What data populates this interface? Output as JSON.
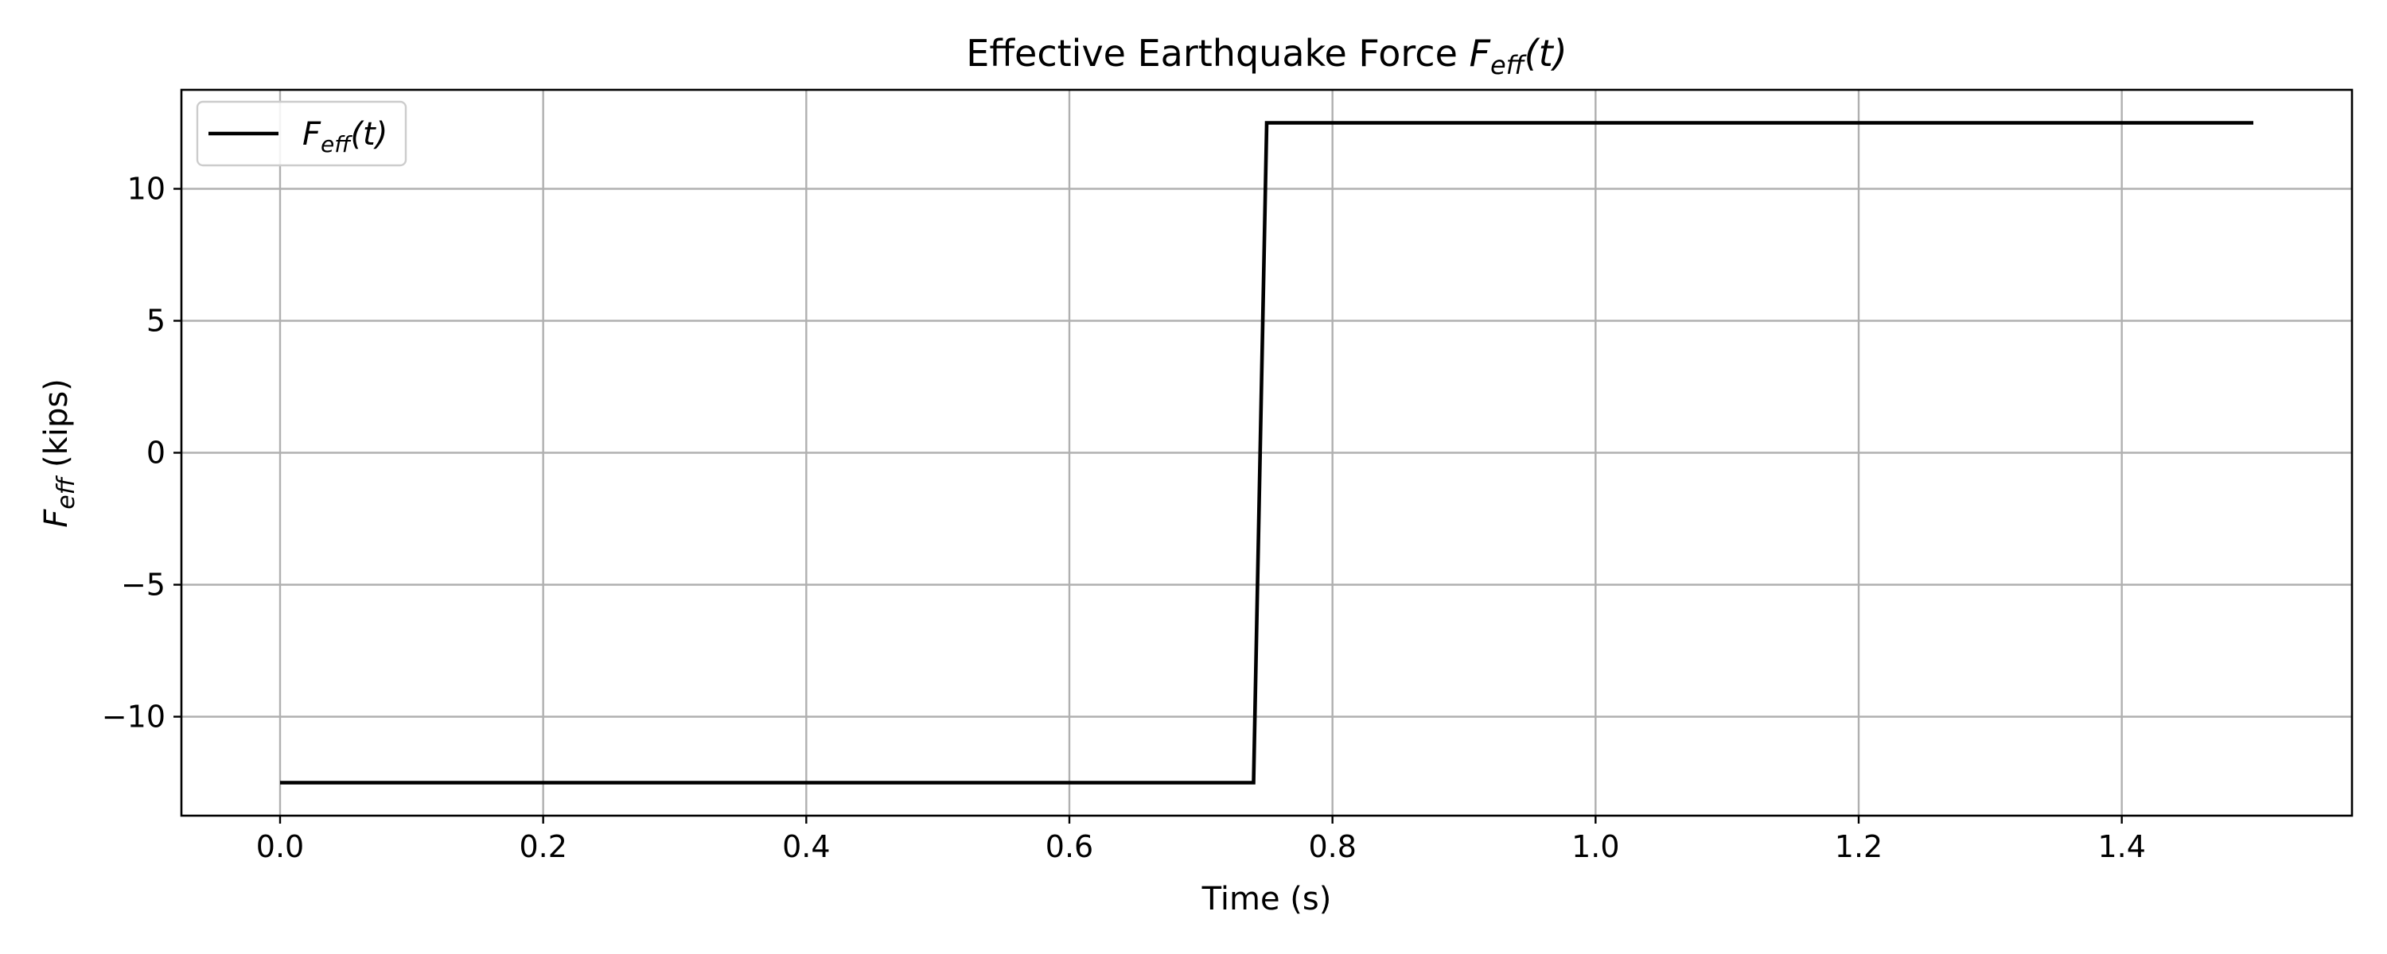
{
  "chart_data": {
    "type": "line",
    "title_text": "Effective Earthquake Force ",
    "title_math": {
      "base": "F",
      "sub": "eff",
      "suffix": "(t)"
    },
    "xlabel": "Time (s)",
    "ylabel_math": {
      "base": "F",
      "sub": "eff",
      "suffix": " (kips)"
    },
    "xlim": [
      -0.075,
      1.575
    ],
    "ylim": [
      -13.75,
      13.75
    ],
    "xticks": [
      0.0,
      0.2,
      0.4,
      0.6,
      0.8,
      1.0,
      1.2,
      1.4
    ],
    "xtick_labels": [
      "0.0",
      "0.2",
      "0.4",
      "0.6",
      "0.8",
      "1.0",
      "1.2",
      "1.4"
    ],
    "yticks": [
      -10,
      -5,
      0,
      5,
      10
    ],
    "ytick_labels": [
      "−10",
      "−5",
      "0",
      "5",
      "10"
    ],
    "grid": true,
    "legend_position": "top-left",
    "series": [
      {
        "name_math": {
          "base": "F",
          "sub": "eff",
          "suffix": "(t)"
        },
        "color": "#000000",
        "x": [
          0.0,
          0.74,
          0.75,
          1.5
        ],
        "y": [
          -12.5,
          -12.5,
          12.5,
          12.5
        ]
      }
    ]
  }
}
